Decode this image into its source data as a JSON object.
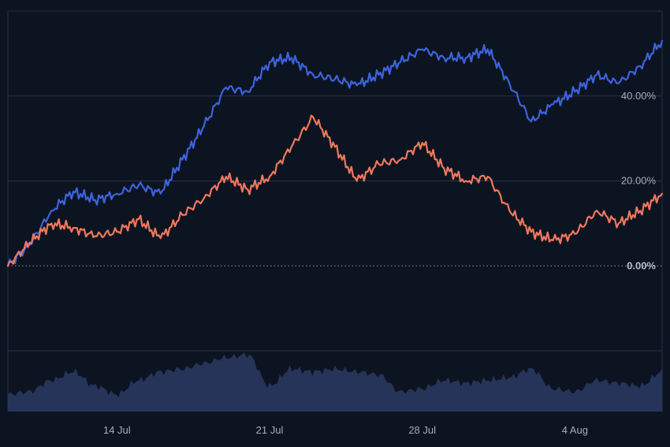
{
  "chart_data": {
    "type": "line",
    "title": "",
    "xlabel": "",
    "ylabel": "",
    "ylim": [
      -20,
      60
    ],
    "y_ticks": [
      {
        "value": 40,
        "label": "40.00%"
      },
      {
        "value": 20,
        "label": "20.00%"
      },
      {
        "value": 0,
        "label": "0.00%"
      }
    ],
    "x_range": [
      "2024-07-09",
      "2024-08-08"
    ],
    "x_ticks": [
      {
        "date": "2024-07-14",
        "label": "14 Jul"
      },
      {
        "date": "2024-07-21",
        "label": "21 Jul"
      },
      {
        "date": "2024-07-28",
        "label": "28 Jul"
      },
      {
        "date": "2024-08-04",
        "label": "4 Aug"
      }
    ],
    "grid": true,
    "baseline": {
      "value": 0,
      "style": "dotted"
    },
    "series": [
      {
        "color": "#3d63dd",
        "points": [
          [
            "2024-07-09",
            0.0
          ],
          [
            "2024-07-10",
            5.0
          ],
          [
            "2024-07-11",
            13.0
          ],
          [
            "2024-07-12",
            17.5
          ],
          [
            "2024-07-13",
            15.5
          ],
          [
            "2024-07-14",
            17.0
          ],
          [
            "2024-07-15",
            19.0
          ],
          [
            "2024-07-16",
            17.0
          ],
          [
            "2024-07-17",
            25.0
          ],
          [
            "2024-07-18",
            33.0
          ],
          [
            "2024-07-19",
            42.0
          ],
          [
            "2024-07-20",
            41.0
          ],
          [
            "2024-07-21",
            48.0
          ],
          [
            "2024-07-22",
            49.0
          ],
          [
            "2024-07-23",
            45.0
          ],
          [
            "2024-07-24",
            44.0
          ],
          [
            "2024-07-25",
            42.5
          ],
          [
            "2024-07-26",
            45.0
          ],
          [
            "2024-07-27",
            48.0
          ],
          [
            "2024-07-28",
            51.0
          ],
          [
            "2024-07-29",
            49.0
          ],
          [
            "2024-07-30",
            49.0
          ],
          [
            "2024-07-31",
            51.0
          ],
          [
            "2024-08-01",
            43.0
          ],
          [
            "2024-08-02",
            34.0
          ],
          [
            "2024-08-03",
            38.0
          ],
          [
            "2024-08-04",
            41.0
          ],
          [
            "2024-08-05",
            45.0
          ],
          [
            "2024-08-06",
            43.0
          ],
          [
            "2024-08-07",
            47.0
          ],
          [
            "2024-08-08",
            53.0
          ]
        ]
      },
      {
        "color": "#f0785c",
        "points": [
          [
            "2024-07-09",
            0.0
          ],
          [
            "2024-07-10",
            5.5
          ],
          [
            "2024-07-11",
            10.0
          ],
          [
            "2024-07-12",
            9.0
          ],
          [
            "2024-07-13",
            7.0
          ],
          [
            "2024-07-14",
            8.0
          ],
          [
            "2024-07-15",
            11.0
          ],
          [
            "2024-07-16",
            6.5
          ],
          [
            "2024-07-17",
            12.0
          ],
          [
            "2024-07-18",
            16.0
          ],
          [
            "2024-07-19",
            21.0
          ],
          [
            "2024-07-20",
            18.0
          ],
          [
            "2024-07-21",
            21.0
          ],
          [
            "2024-07-22",
            28.0
          ],
          [
            "2024-07-23",
            35.0
          ],
          [
            "2024-07-24",
            28.0
          ],
          [
            "2024-07-25",
            20.0
          ],
          [
            "2024-07-26",
            24.0
          ],
          [
            "2024-07-27",
            25.0
          ],
          [
            "2024-07-28",
            29.0
          ],
          [
            "2024-07-29",
            23.0
          ],
          [
            "2024-07-30",
            20.0
          ],
          [
            "2024-07-31",
            21.0
          ],
          [
            "2024-08-01",
            13.0
          ],
          [
            "2024-08-02",
            8.0
          ],
          [
            "2024-08-03",
            6.0
          ],
          [
            "2024-08-04",
            7.5
          ],
          [
            "2024-08-05",
            13.0
          ],
          [
            "2024-08-06",
            10.0
          ],
          [
            "2024-08-07",
            13.0
          ],
          [
            "2024-08-08",
            17.0
          ]
        ]
      }
    ],
    "volume": {
      "color": "#2b3a63",
      "values": [
        0.3,
        0.35,
        0.55,
        0.7,
        0.45,
        0.3,
        0.55,
        0.7,
        0.75,
        0.85,
        0.95,
        1.0,
        0.45,
        0.75,
        0.7,
        0.75,
        0.7,
        0.65,
        0.35,
        0.4,
        0.55,
        0.5,
        0.55,
        0.6,
        0.75,
        0.4,
        0.35,
        0.55,
        0.5,
        0.45,
        0.7
      ]
    }
  }
}
